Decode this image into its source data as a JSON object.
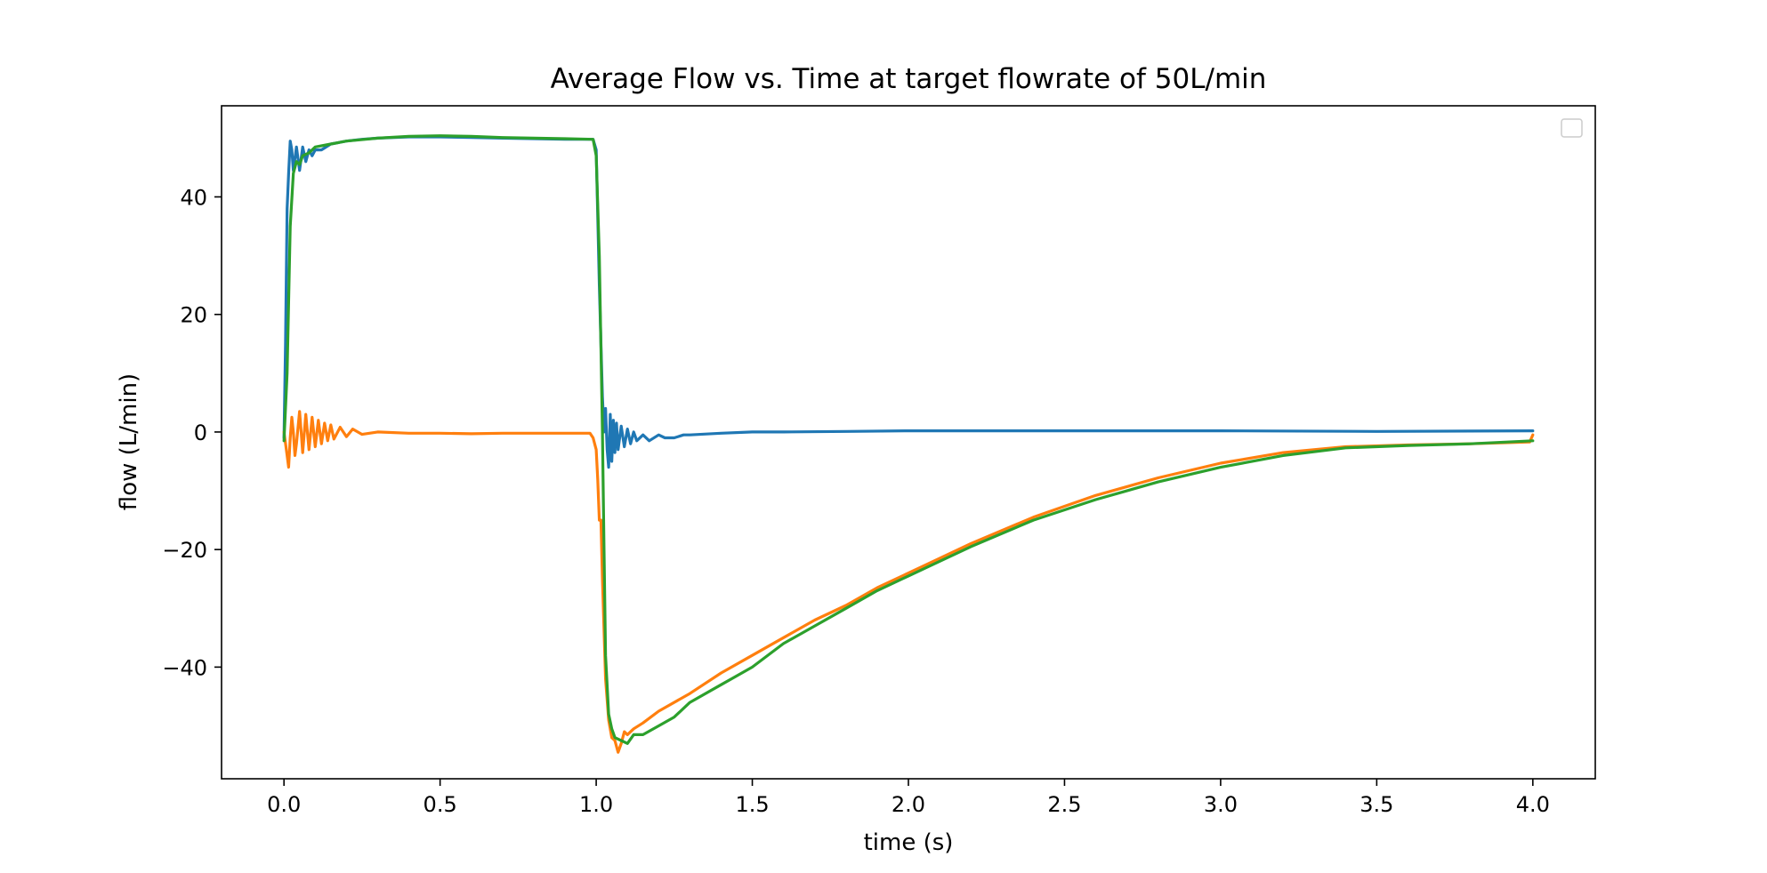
{
  "chart_data": {
    "type": "line",
    "title": "Average Flow vs. Time at target flowrate of 50L/min",
    "xlabel": "time (s)",
    "ylabel": "flow (L/min)",
    "xlim": [
      -0.2,
      4.2
    ],
    "ylim": [
      -59,
      55.5
    ],
    "xticks": [
      0.0,
      0.5,
      1.0,
      1.5,
      2.0,
      2.5,
      3.0,
      3.5,
      4.0
    ],
    "xtick_labels": [
      "0.0",
      "0.5",
      "1.0",
      "1.5",
      "2.0",
      "2.5",
      "3.0",
      "3.5",
      "4.0"
    ],
    "yticks": [
      -40,
      -20,
      0,
      20,
      40
    ],
    "ytick_labels": [
      "−40",
      "−20",
      "0",
      "20",
      "40"
    ],
    "grid": false,
    "legend": {
      "placement": "top-right",
      "entries": []
    },
    "series": [
      {
        "color": "#1f77b4",
        "points": [
          [
            0.0,
            -1
          ],
          [
            0.005,
            15
          ],
          [
            0.01,
            38
          ],
          [
            0.015,
            44
          ],
          [
            0.02,
            49.5
          ],
          [
            0.025,
            48
          ],
          [
            0.03,
            44.5
          ],
          [
            0.04,
            48.5
          ],
          [
            0.05,
            44.5
          ],
          [
            0.06,
            48.5
          ],
          [
            0.07,
            46
          ],
          [
            0.08,
            48
          ],
          [
            0.09,
            47
          ],
          [
            0.1,
            48
          ],
          [
            0.12,
            48
          ],
          [
            0.15,
            49
          ],
          [
            0.2,
            49.5
          ],
          [
            0.25,
            49.8
          ],
          [
            0.3,
            50
          ],
          [
            0.4,
            50.2
          ],
          [
            0.5,
            50.2
          ],
          [
            0.6,
            50.1
          ],
          [
            0.7,
            50
          ],
          [
            0.8,
            49.9
          ],
          [
            0.9,
            49.8
          ],
          [
            0.99,
            49.8
          ],
          [
            1.0,
            48
          ],
          [
            1.01,
            25
          ],
          [
            1.02,
            6
          ],
          [
            1.025,
            0
          ],
          [
            1.03,
            4
          ],
          [
            1.035,
            -3
          ],
          [
            1.04,
            -6
          ],
          [
            1.045,
            3
          ],
          [
            1.05,
            -5
          ],
          [
            1.055,
            2
          ],
          [
            1.06,
            -3.5
          ],
          [
            1.065,
            1.5
          ],
          [
            1.07,
            -3
          ],
          [
            1.08,
            1
          ],
          [
            1.09,
            -2.5
          ],
          [
            1.1,
            0.5
          ],
          [
            1.11,
            -2
          ],
          [
            1.12,
            0
          ],
          [
            1.13,
            -1.5
          ],
          [
            1.15,
            -0.5
          ],
          [
            1.17,
            -1.5
          ],
          [
            1.2,
            -0.5
          ],
          [
            1.22,
            -1
          ],
          [
            1.25,
            -1
          ],
          [
            1.28,
            -0.5
          ],
          [
            1.3,
            -0.5
          ],
          [
            1.4,
            -0.2
          ],
          [
            1.5,
            0
          ],
          [
            1.6,
            0
          ],
          [
            1.8,
            0.1
          ],
          [
            2.0,
            0.2
          ],
          [
            2.5,
            0.2
          ],
          [
            3.0,
            0.2
          ],
          [
            3.5,
            0.1
          ],
          [
            4.0,
            0.2
          ]
        ]
      },
      {
        "color": "#ff7f0e",
        "points": [
          [
            0.0,
            0
          ],
          [
            0.01,
            -4
          ],
          [
            0.015,
            -6
          ],
          [
            0.02,
            -1
          ],
          [
            0.025,
            2.5
          ],
          [
            0.03,
            0
          ],
          [
            0.035,
            -4
          ],
          [
            0.04,
            -2
          ],
          [
            0.05,
            3.5
          ],
          [
            0.055,
            0
          ],
          [
            0.06,
            -3.5
          ],
          [
            0.07,
            3
          ],
          [
            0.08,
            -3
          ],
          [
            0.09,
            2.5
          ],
          [
            0.1,
            -2.5
          ],
          [
            0.11,
            2
          ],
          [
            0.12,
            -2
          ],
          [
            0.13,
            1.5
          ],
          [
            0.14,
            -1.5
          ],
          [
            0.15,
            1.2
          ],
          [
            0.16,
            -1.2
          ],
          [
            0.18,
            0.8
          ],
          [
            0.2,
            -0.8
          ],
          [
            0.22,
            0.5
          ],
          [
            0.25,
            -0.4
          ],
          [
            0.3,
            0
          ],
          [
            0.4,
            -0.2
          ],
          [
            0.5,
            -0.2
          ],
          [
            0.6,
            -0.3
          ],
          [
            0.7,
            -0.2
          ],
          [
            0.8,
            -0.2
          ],
          [
            0.9,
            -0.2
          ],
          [
            0.98,
            -0.2
          ],
          [
            0.99,
            -1
          ],
          [
            1.0,
            -3
          ],
          [
            1.005,
            -8
          ],
          [
            1.01,
            -15
          ],
          [
            1.015,
            -15
          ],
          [
            1.02,
            -25
          ],
          [
            1.03,
            -42
          ],
          [
            1.04,
            -49
          ],
          [
            1.05,
            -52
          ],
          [
            1.06,
            -52.5
          ],
          [
            1.07,
            -54.5
          ],
          [
            1.08,
            -53
          ],
          [
            1.09,
            -51
          ],
          [
            1.1,
            -51.5
          ],
          [
            1.12,
            -50.5
          ],
          [
            1.15,
            -49.5
          ],
          [
            1.2,
            -47.5
          ],
          [
            1.3,
            -44.5
          ],
          [
            1.4,
            -41
          ],
          [
            1.5,
            -38
          ],
          [
            1.6,
            -35
          ],
          [
            1.7,
            -32
          ],
          [
            1.8,
            -29.5
          ],
          [
            1.9,
            -26.5
          ],
          [
            2.0,
            -24
          ],
          [
            2.2,
            -19
          ],
          [
            2.4,
            -14.5
          ],
          [
            2.6,
            -10.8
          ],
          [
            2.8,
            -7.8
          ],
          [
            3.0,
            -5.3
          ],
          [
            3.2,
            -3.5
          ],
          [
            3.4,
            -2.5
          ],
          [
            3.6,
            -2.2
          ],
          [
            3.8,
            -2
          ],
          [
            3.99,
            -1.7
          ],
          [
            4.0,
            -0.5
          ]
        ]
      },
      {
        "color": "#2ca02c",
        "points": [
          [
            0.0,
            -1.5
          ],
          [
            0.01,
            10
          ],
          [
            0.02,
            35
          ],
          [
            0.03,
            44
          ],
          [
            0.04,
            46
          ],
          [
            0.05,
            45.5
          ],
          [
            0.06,
            47
          ],
          [
            0.08,
            47.5
          ],
          [
            0.1,
            48.5
          ],
          [
            0.15,
            49
          ],
          [
            0.2,
            49.5
          ],
          [
            0.3,
            50
          ],
          [
            0.4,
            50.3
          ],
          [
            0.5,
            50.4
          ],
          [
            0.6,
            50.3
          ],
          [
            0.7,
            50.1
          ],
          [
            0.8,
            50
          ],
          [
            0.9,
            49.9
          ],
          [
            0.99,
            49.8
          ],
          [
            1.0,
            47
          ],
          [
            1.01,
            30
          ],
          [
            1.02,
            0
          ],
          [
            1.025,
            -20
          ],
          [
            1.03,
            -38
          ],
          [
            1.04,
            -48
          ],
          [
            1.05,
            -50.5
          ],
          [
            1.06,
            -52
          ],
          [
            1.08,
            -52.5
          ],
          [
            1.1,
            -53
          ],
          [
            1.12,
            -51.5
          ],
          [
            1.15,
            -51.5
          ],
          [
            1.2,
            -50
          ],
          [
            1.25,
            -48.5
          ],
          [
            1.3,
            -46
          ],
          [
            1.4,
            -43
          ],
          [
            1.5,
            -40
          ],
          [
            1.6,
            -36
          ],
          [
            1.7,
            -33
          ],
          [
            1.8,
            -30
          ],
          [
            1.9,
            -27
          ],
          [
            2.0,
            -24.5
          ],
          [
            2.2,
            -19.5
          ],
          [
            2.4,
            -15
          ],
          [
            2.6,
            -11.5
          ],
          [
            2.8,
            -8.5
          ],
          [
            3.0,
            -6
          ],
          [
            3.2,
            -4
          ],
          [
            3.4,
            -2.7
          ],
          [
            3.6,
            -2.3
          ],
          [
            3.8,
            -2
          ],
          [
            4.0,
            -1.5
          ]
        ]
      }
    ]
  }
}
